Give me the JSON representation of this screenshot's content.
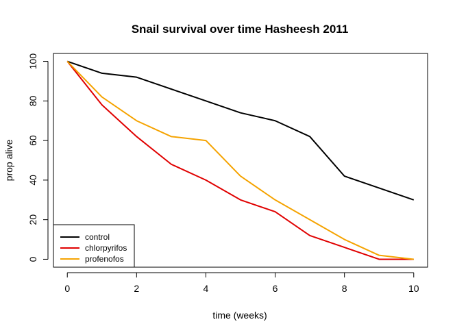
{
  "chart_data": {
    "type": "line",
    "title": "Snail survival over time Hasheesh 2011",
    "xlabel": "time (weeks)",
    "ylabel": "prop alive",
    "xlim": [
      -0.4,
      10.4
    ],
    "ylim": [
      -4,
      104
    ],
    "xticks": [
      0,
      2,
      4,
      6,
      8,
      10
    ],
    "yticks": [
      0,
      20,
      40,
      60,
      80,
      100
    ],
    "grid": false,
    "legend_position": "bottom-left",
    "x": [
      0,
      1,
      2,
      3,
      4,
      5,
      6,
      7,
      8,
      9,
      10
    ],
    "series": [
      {
        "name": "control",
        "color": "#000000",
        "values": [
          100,
          94,
          92,
          86,
          80,
          74,
          70,
          62,
          42,
          36,
          30
        ]
      },
      {
        "name": "chlorpyrifos",
        "color": "#e00000",
        "values": [
          100,
          78,
          62,
          48,
          40,
          30,
          24,
          12,
          6,
          0,
          0
        ]
      },
      {
        "name": "profenofos",
        "color": "#f5a300",
        "values": [
          100,
          82,
          70,
          62,
          60,
          42,
          30,
          20,
          10,
          2,
          0
        ]
      }
    ]
  }
}
